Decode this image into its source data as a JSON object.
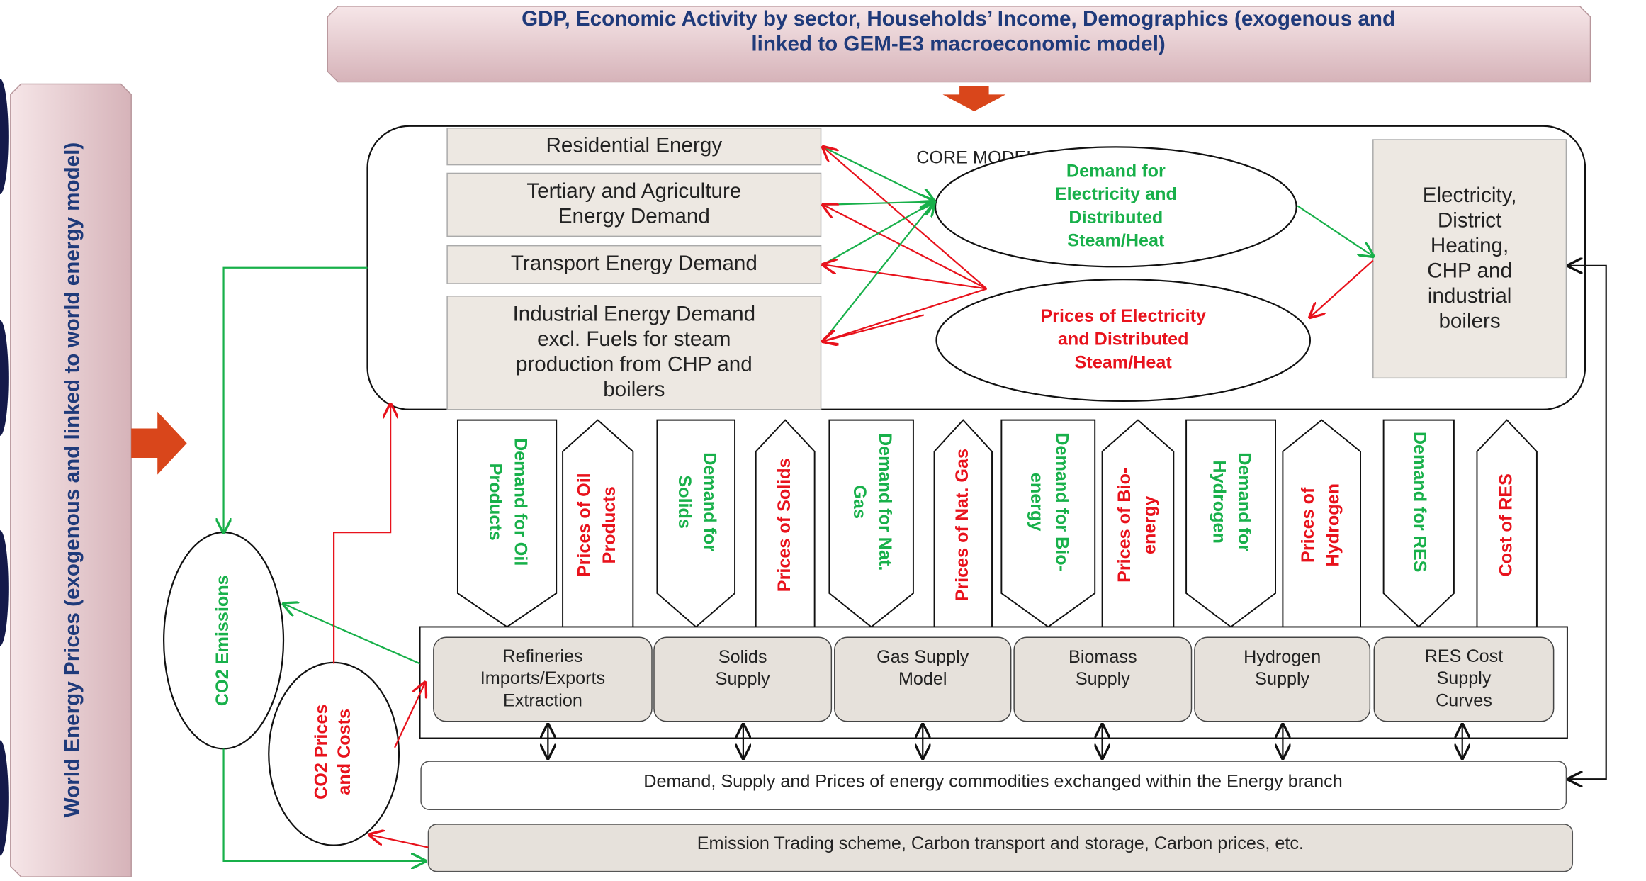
{
  "top_banner": [
    "GDP, Economic Activity by sector, Households’ Income, Demographics (exogenous and",
    "linked to GEM-E3 macroeconomic model)"
  ],
  "left_banner": "World Energy Prices (exogenous and linked to world energy model)",
  "core_model_label": "CORE MODEL",
  "demand_boxes": [
    [
      "Residential Energy"
    ],
    [
      "Tertiary and Agriculture",
      "Energy Demand"
    ],
    [
      "Transport Energy Demand"
    ],
    [
      "Industrial Energy Demand",
      "excl. Fuels for steam",
      "production from CHP and",
      "boilers"
    ]
  ],
  "electricity_demand": [
    "Demand for",
    "Electricity and",
    "Distributed",
    "Steam/Heat"
  ],
  "electricity_prices": [
    "Prices of Electricity",
    "and Distributed",
    "Steam/Heat"
  ],
  "power_box": [
    "Electricity,",
    "District",
    "Heating,",
    "CHP and",
    "industrial",
    "boilers"
  ],
  "fuel_links": [
    {
      "demand": [
        "Demand for Oil",
        "Products"
      ],
      "prices": [
        "Prices of Oil",
        "Products"
      ]
    },
    {
      "demand": [
        "Demand for",
        "Solids"
      ],
      "prices": [
        "Prices of Solids"
      ]
    },
    {
      "demand": [
        "Demand for Nat.",
        "Gas"
      ],
      "prices": [
        "Prices of Nat. Gas"
      ]
    },
    {
      "demand": [
        "Demand for Bio-",
        "energy"
      ],
      "prices": [
        "Prices of Bio-",
        "energy"
      ]
    },
    {
      "demand": [
        "Demand for",
        "Hydrogen"
      ],
      "prices": [
        "Prices of",
        "Hydrogen"
      ]
    },
    {
      "demand": [
        "Demand for RES"
      ],
      "prices": [
        "Cost of RES"
      ]
    }
  ],
  "supply_boxes": [
    [
      "Refineries",
      "Imports/Exports",
      "Extraction"
    ],
    [
      "Solids",
      "Supply"
    ],
    [
      "Gas Supply",
      "Model"
    ],
    [
      "Biomass",
      "Supply"
    ],
    [
      "Hydrogen",
      "Supply"
    ],
    [
      "RES Cost",
      "Supply",
      "Curves"
    ]
  ],
  "co2_emissions": "CO2 Emissions",
  "co2_prices": [
    "CO2 Prices",
    "and Costs"
  ],
  "exchange_bar": "Demand, Supply and Prices of energy commodities exchanged within the Energy branch",
  "emission_trading_bar": "Emission Trading scheme, Carbon transport and storage, Carbon prices, etc."
}
